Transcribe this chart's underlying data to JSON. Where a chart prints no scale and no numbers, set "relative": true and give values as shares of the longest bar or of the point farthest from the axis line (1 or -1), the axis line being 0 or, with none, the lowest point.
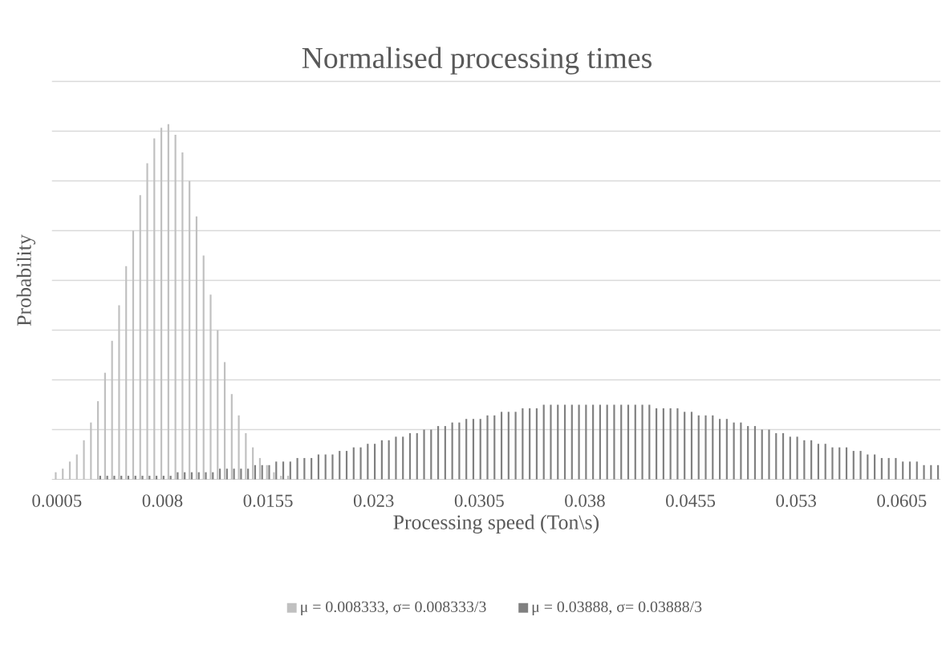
{
  "chart_data": {
    "type": "bar",
    "title": "Normalised processing times",
    "xlabel": "Processing speed (Ton\\s)",
    "ylabel": "Probability",
    "relative": true,
    "grid": "y",
    "legend": "bottom",
    "categories": [
      "0.0005",
      null,
      null,
      null,
      null,
      null,
      null,
      null,
      null,
      null,
      null,
      null,
      null,
      null,
      null,
      "0.008",
      null,
      null,
      null,
      null,
      null,
      null,
      null,
      null,
      null,
      null,
      null,
      null,
      null,
      null,
      "0.0155",
      null,
      null,
      null,
      null,
      null,
      null,
      null,
      null,
      null,
      null,
      null,
      null,
      null,
      null,
      "0.023",
      null,
      null,
      null,
      null,
      null,
      null,
      null,
      null,
      null,
      null,
      null,
      null,
      null,
      null,
      "0.0305",
      null,
      null,
      null,
      null,
      null,
      null,
      null,
      null,
      null,
      null,
      null,
      null,
      null,
      null,
      "0.038",
      null,
      null,
      null,
      null,
      null,
      null,
      null,
      null,
      null,
      null,
      null,
      null,
      null,
      null,
      "0.0455",
      null,
      null,
      null,
      null,
      null,
      null,
      null,
      null,
      null,
      null,
      null,
      null,
      null,
      null,
      "0.053",
      null,
      null,
      null,
      null,
      null,
      null,
      null,
      null,
      null,
      null,
      null,
      null,
      null,
      null,
      "0.0605",
      null,
      null,
      null,
      null,
      null
    ],
    "series": [
      {
        "name": "μ = 0.008333, σ= 0.008333/3",
        "color": "#c0c0c0",
        "values": [
          0.02,
          0.03,
          0.05,
          0.07,
          0.11,
          0.16,
          0.22,
          0.3,
          0.39,
          0.49,
          0.6,
          0.7,
          0.8,
          0.89,
          0.96,
          0.99,
          1.0,
          0.97,
          0.92,
          0.84,
          0.74,
          0.63,
          0.52,
          0.42,
          0.33,
          0.24,
          0.18,
          0.13,
          0.09,
          0.06,
          0.04,
          0.02,
          0.01,
          0.01,
          0,
          0,
          0,
          0,
          0,
          0,
          0,
          0,
          0,
          0,
          0,
          0,
          0,
          0,
          0,
          0,
          0,
          0,
          0,
          0,
          0,
          0,
          0,
          0,
          0,
          0,
          0,
          0,
          0,
          0,
          0,
          0,
          0,
          0,
          0,
          0,
          0,
          0,
          0,
          0,
          0,
          0,
          0,
          0,
          0,
          0,
          0,
          0,
          0,
          0,
          0,
          0,
          0,
          0,
          0,
          0,
          0,
          0,
          0,
          0,
          0,
          0,
          0,
          0,
          0,
          0,
          0,
          0,
          0,
          0,
          0,
          0,
          0,
          0,
          0,
          0,
          0,
          0,
          0,
          0,
          0,
          0,
          0,
          0,
          0,
          0,
          0,
          0,
          0,
          0,
          0,
          0
        ]
      },
      {
        "name": "μ = 0.03888, σ= 0.03888/3",
        "color": "#808080",
        "values": [
          0,
          0,
          0,
          0,
          0,
          0,
          0.01,
          0.01,
          0.01,
          0.01,
          0.01,
          0.01,
          0.01,
          0.01,
          0.01,
          0.01,
          0.01,
          0.02,
          0.02,
          0.02,
          0.02,
          0.02,
          0.02,
          0.03,
          0.03,
          0.03,
          0.03,
          0.03,
          0.04,
          0.04,
          0.04,
          0.05,
          0.05,
          0.05,
          0.06,
          0.06,
          0.06,
          0.07,
          0.07,
          0.07,
          0.08,
          0.08,
          0.09,
          0.09,
          0.1,
          0.1,
          0.11,
          0.11,
          0.12,
          0.12,
          0.13,
          0.13,
          0.14,
          0.14,
          0.15,
          0.15,
          0.16,
          0.16,
          0.17,
          0.17,
          0.17,
          0.18,
          0.18,
          0.19,
          0.19,
          0.19,
          0.2,
          0.2,
          0.2,
          0.21,
          0.21,
          0.21,
          0.21,
          0.21,
          0.21,
          0.21,
          0.21,
          0.21,
          0.21,
          0.21,
          0.21,
          0.21,
          0.21,
          0.21,
          0.21,
          0.2,
          0.2,
          0.2,
          0.2,
          0.19,
          0.19,
          0.18,
          0.18,
          0.18,
          0.17,
          0.17,
          0.16,
          0.16,
          0.15,
          0.15,
          0.14,
          0.14,
          0.13,
          0.13,
          0.12,
          0.12,
          0.11,
          0.11,
          0.1,
          0.1,
          0.09,
          0.09,
          0.09,
          0.08,
          0.08,
          0.07,
          0.07,
          0.06,
          0.06,
          0.06,
          0.05,
          0.05,
          0.05,
          0.04,
          0.04,
          0.04
        ]
      }
    ]
  }
}
